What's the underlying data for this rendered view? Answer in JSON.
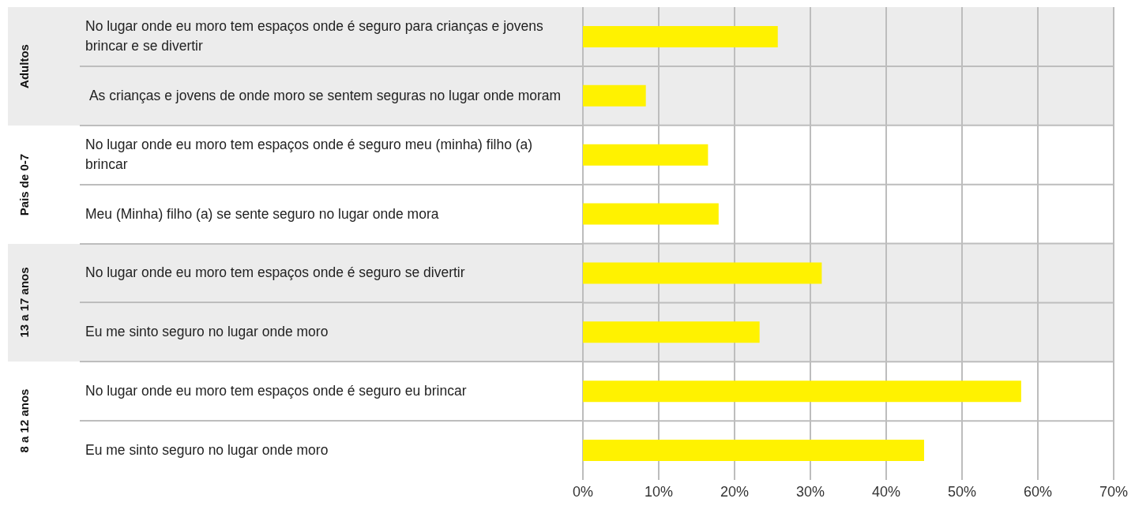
{
  "chart_data": {
    "type": "bar",
    "orientation": "horizontal",
    "categories": [
      "No lugar onde eu moro tem espaços onde é seguro para crianças e jovens brincar e se divertir",
      " As crianças e jovens de onde moro se sentem seguras no lugar onde moram",
      "No lugar onde eu moro tem espaços onde é seguro meu (minha) filho (a) brincar",
      "Meu (Minha) filho (a) se sente seguro no lugar onde mora",
      "No lugar onde eu moro tem espaços onde é seguro se divertir",
      "Eu me sinto seguro no lugar onde moro",
      "No lugar onde eu moro tem espaços onde é seguro eu brincar",
      "Eu me sinto seguro no lugar onde moro"
    ],
    "values": [
      25.7,
      8.3,
      16.5,
      17.9,
      31.5,
      23.3,
      57.8,
      45.0
    ],
    "color": "#fff200",
    "xlim": [
      0,
      70
    ],
    "xticks": [
      {
        "value": 0,
        "label": "0%"
      },
      {
        "value": 10,
        "label": "10%"
      },
      {
        "value": 20,
        "label": "20%"
      },
      {
        "value": 30,
        "label": "30%"
      },
      {
        "value": 40,
        "label": "40%"
      },
      {
        "value": 50,
        "label": "50%"
      },
      {
        "value": 60,
        "label": "60%"
      },
      {
        "value": 70,
        "label": "70%"
      }
    ],
    "annotations": [
      "Adultos",
      "Pais de 0-7",
      "13 a 17 anos",
      "8 a 12 anos"
    ],
    "grid": true,
    "legend": false
  }
}
